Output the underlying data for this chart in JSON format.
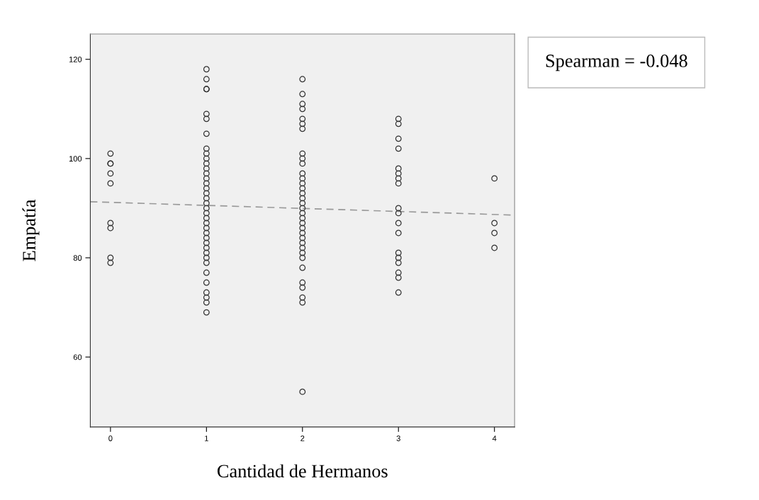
{
  "chart_data": {
    "type": "scatter",
    "xlabel": "Cantidad de Hermanos",
    "ylabel": "Empatía",
    "xlim": [
      -0.21,
      4.21
    ],
    "xticks": [
      0,
      1,
      2,
      3,
      4
    ],
    "ylim": [
      45.9,
      125.1
    ],
    "yticks": [
      60,
      80,
      100,
      120
    ],
    "grid": false,
    "legend": false,
    "marker": "circle",
    "annotations": [
      "Spearman = -0.048"
    ],
    "series": [
      {
        "color": "#333333",
        "x": [
          0,
          0,
          0,
          0,
          0,
          0,
          0,
          0,
          0,
          1,
          1,
          1,
          1,
          1,
          1,
          1,
          1,
          1,
          1,
          1,
          1,
          1,
          1,
          1,
          1,
          1,
          1,
          1,
          1,
          1,
          1,
          1,
          1,
          1,
          1,
          1,
          1,
          1,
          1,
          1,
          1,
          1,
          1,
          1,
          1,
          1,
          2,
          2,
          2,
          2,
          2,
          2,
          2,
          2,
          2,
          2,
          2,
          2,
          2,
          2,
          2,
          2,
          2,
          2,
          2,
          2,
          2,
          2,
          2,
          2,
          2,
          2,
          2,
          2,
          2,
          2,
          2,
          2,
          2,
          2,
          3,
          3,
          3,
          3,
          3,
          3,
          3,
          3,
          3,
          3,
          3,
          3,
          3,
          3,
          3,
          3,
          3,
          3,
          4,
          4,
          4,
          4
        ],
        "values": [
          101,
          99,
          99,
          97,
          95,
          87,
          86,
          80,
          79,
          118,
          116,
          114,
          114,
          109,
          108,
          105,
          102,
          101,
          100,
          99,
          98,
          97,
          96,
          95,
          94,
          93,
          92,
          91,
          90,
          89,
          88,
          87,
          86,
          85,
          84,
          83,
          82,
          81,
          80,
          79,
          77,
          75,
          73,
          72,
          71,
          69,
          116,
          113,
          111,
          110,
          108,
          107,
          106,
          101,
          100,
          99,
          97,
          96,
          95,
          94,
          93,
          92,
          91,
          90,
          89,
          88,
          87,
          86,
          85,
          84,
          83,
          82,
          81,
          80,
          78,
          75,
          74,
          72,
          71,
          53,
          108,
          107,
          104,
          102,
          98,
          97,
          96,
          95,
          90,
          89,
          87,
          85,
          81,
          80,
          79,
          77,
          76,
          73,
          96,
          87,
          85,
          82
        ]
      },
      {
        "type": "line",
        "color": "#999999",
        "line_style": "dashed",
        "marker": "none",
        "x": [
          -0.21,
          4.21
        ],
        "values": [
          91.3,
          88.6
        ]
      }
    ]
  }
}
